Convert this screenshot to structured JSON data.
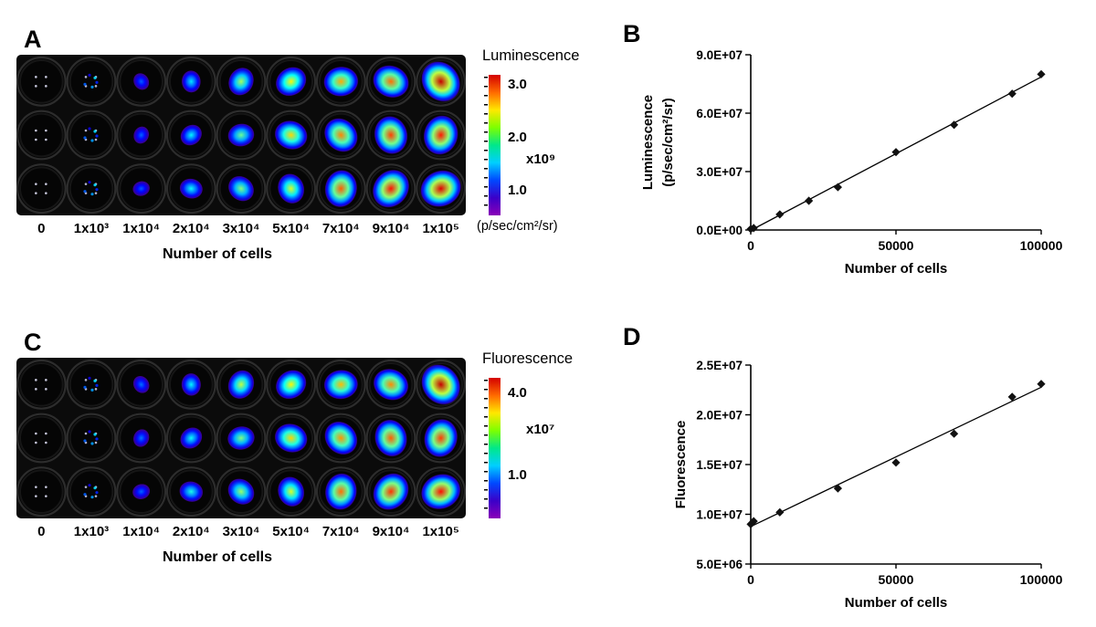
{
  "panels": {
    "A": {
      "label": "A",
      "colorbar": {
        "title": "Luminescence",
        "ticks": [
          "3.0",
          "2.0",
          "1.0"
        ],
        "multiplier": "x10⁹",
        "unit": "(p/sec/cm²/sr)",
        "ramp": [
          "#d40000",
          "#ff6a00",
          "#ffe800",
          "#7dff00",
          "#00e88a",
          "#00cfff",
          "#0048ff",
          "#3b00c8",
          "#8a00b8"
        ]
      }
    },
    "B": {
      "label": "B"
    },
    "C": {
      "label": "C",
      "colorbar": {
        "title": "Fluorescence",
        "ticks": [
          "4.0",
          "1.0"
        ],
        "multiplier": "x10⁷",
        "ramp": [
          "#d40000",
          "#ff6a00",
          "#ffe800",
          "#7dff00",
          "#00e88a",
          "#00cfff",
          "#0048ff",
          "#3b00c8",
          "#8a00b8"
        ]
      }
    },
    "D": {
      "label": "D"
    }
  },
  "chart_data": [
    {
      "panel": "A",
      "type": "heatmap",
      "signal": "Luminescence",
      "categories": [
        "0",
        "1x10³",
        "1x10⁴",
        "2x10⁴",
        "3x10⁴",
        "5x10⁴",
        "7x10⁴",
        "9x10⁴",
        "1x10⁵"
      ],
      "replicate_rows": 3,
      "relative_intensity": [
        0,
        0.02,
        0.09,
        0.28,
        0.45,
        0.6,
        0.74,
        0.88,
        1.0
      ],
      "xlabel": "Number of cells",
      "scale_ticks_x10e9": [
        3.0,
        2.0,
        1.0
      ],
      "scale_units": "(p/sec/cm²/sr)"
    },
    {
      "panel": "B",
      "type": "scatter",
      "signal": "Luminescence",
      "x": [
        0,
        1000,
        10000,
        20000,
        30000,
        50000,
        70000,
        90000,
        100000
      ],
      "y": [
        500000,
        1000000,
        8000000,
        15000000,
        22000000,
        40000000,
        54000000,
        70000000,
        80000000
      ],
      "xlim": [
        0,
        100000
      ],
      "ylim": [
        0,
        90000000
      ],
      "x_tick_values": [
        0,
        50000,
        100000
      ],
      "x_tick_labels": [
        "0",
        "50000",
        "100000"
      ],
      "y_tick_values": [
        0,
        30000000,
        60000000,
        90000000
      ],
      "y_tick_labels": [
        "0.0E+00",
        "3.0E+07",
        "6.0E+07",
        "9.0E+07"
      ],
      "xlabel": "Number of cells",
      "ylabel_lines": [
        "Luminescence",
        "(p/sec/cm²/sr)"
      ],
      "marker": "diamond",
      "trendline": true,
      "grid": false,
      "legend": "none"
    },
    {
      "panel": "C",
      "type": "heatmap",
      "signal": "Fluorescence",
      "categories": [
        "0",
        "1x10³",
        "1x10⁴",
        "2x10⁴",
        "3x10⁴",
        "5x10⁴",
        "7x10⁴",
        "9x10⁴",
        "1x10⁵"
      ],
      "replicate_rows": 3,
      "relative_intensity": [
        0,
        0.02,
        0.11,
        0.3,
        0.48,
        0.6,
        0.72,
        0.84,
        0.95
      ],
      "xlabel": "Number of cells",
      "scale_ticks_x10e7": [
        4.0,
        1.0
      ],
      "scale_units": ""
    },
    {
      "panel": "D",
      "type": "scatter",
      "signal": "Fluorescence",
      "x": [
        0,
        1000,
        10000,
        30000,
        50000,
        70000,
        90000,
        100000
      ],
      "y": [
        9000000,
        9300000,
        10200000,
        12600000,
        15200000,
        18100000,
        21800000,
        23100000
      ],
      "xlim": [
        0,
        100000
      ],
      "ylim": [
        5000000,
        25000000
      ],
      "x_tick_values": [
        0,
        50000,
        100000
      ],
      "x_tick_labels": [
        "0",
        "50000",
        "100000"
      ],
      "y_tick_values": [
        5000000,
        10000000,
        15000000,
        20000000,
        25000000
      ],
      "y_tick_labels": [
        "5.0E+06",
        "1.0E+07",
        "1.5E+07",
        "2.0E+07",
        "2.5E+07"
      ],
      "xlabel": "Number of cells",
      "ylabel_lines": [
        "Fluorescence"
      ],
      "marker": "diamond",
      "trendline": true,
      "grid": false,
      "legend": "none"
    }
  ]
}
